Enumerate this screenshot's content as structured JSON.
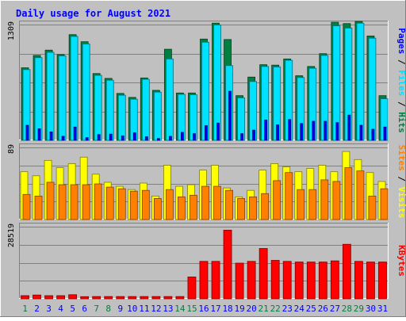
{
  "chart_data": {
    "type": "bar",
    "title": "Daily usage for August 2021",
    "categories": [
      "1",
      "2",
      "3",
      "4",
      "5",
      "6",
      "7",
      "8",
      "9",
      "10",
      "11",
      "12",
      "13",
      "14",
      "15",
      "16",
      "17",
      "18",
      "19",
      "20",
      "21",
      "22",
      "23",
      "24",
      "25",
      "26",
      "27",
      "28",
      "29",
      "30",
      "31"
    ],
    "weekend_days": [
      "1",
      "7",
      "8",
      "14",
      "15",
      "21",
      "22",
      "28",
      "29"
    ],
    "panels": [
      {
        "name": "hits-files-pages",
        "ymax_label": "1309",
        "ylim": [
          0,
          1309
        ],
        "right_labels": [
          "Pages",
          "Files",
          "Hits"
        ],
        "series": [
          {
            "name": "Hits",
            "color": "#008040",
            "values": [
              820,
              960,
              1020,
              970,
              1195,
              1115,
              755,
              700,
              530,
              485,
              705,
              565,
              1030,
              535,
              535,
              1145,
              1325,
              1140,
              505,
              715,
              855,
              850,
              920,
              730,
              835,
              980,
              1335,
              1320,
              1345,
              1180,
              505
            ]
          },
          {
            "name": "Files",
            "color": "#00e0ff",
            "values": [
              800,
              935,
              995,
              955,
              1175,
              1090,
              735,
              680,
              510,
              465,
              690,
              545,
              920,
              520,
              515,
              1110,
              1305,
              845,
              480,
              665,
              835,
              830,
              905,
              710,
              815,
              960,
              1295,
              1270,
              1325,
              1155,
              470
            ]
          },
          {
            "name": "Pages",
            "color": "#0000ff",
            "values": [
              170,
              130,
              95,
              45,
              150,
              30,
              65,
              70,
              50,
              85,
              40,
              20,
              45,
              90,
              75,
              165,
              195,
              555,
              75,
              115,
              230,
              175,
              235,
              190,
              215,
              215,
              200,
              285,
              170,
              125,
              150
            ]
          }
        ]
      },
      {
        "name": "visits-sites",
        "ymax_label": "89",
        "ylim": [
          0,
          89
        ],
        "right_labels": [
          "Sites",
          "Visits"
        ],
        "series": [
          {
            "name": "Visits",
            "color": "#ffff00",
            "values": [
              59,
              54,
              73,
              64,
              69,
              77,
              56,
              46,
              41,
              37,
              45,
              29,
              67,
              41,
              43,
              61,
              67,
              39,
              28,
              36,
              61,
              69,
              65,
              59,
              63,
              67,
              59,
              84,
              74,
              58,
              47
            ]
          },
          {
            "name": "Sites",
            "color": "#ff8000",
            "values": [
              31,
              29,
              46,
              43,
              43,
              43,
              44,
              40,
              38,
              35,
              36,
              26,
              37,
              28,
              30,
              41,
              41,
              36,
              26,
              28,
              32,
              48,
              58,
              37,
              37,
              49,
              47,
              64,
              60,
              29,
              38
            ]
          }
        ]
      },
      {
        "name": "kbytes",
        "ymax_label": "28519",
        "ylim": [
          0,
          28519
        ],
        "right_labels": [
          "KBytes"
        ],
        "series": [
          {
            "name": "KBytes",
            "color": "#ff0000",
            "values": [
              1250,
              1500,
              1250,
              1250,
              1620,
              850,
              900,
              900,
              900,
              900,
              900,
              900,
              900,
              900,
              8640,
              14800,
              14800,
              27150,
              14100,
              14800,
              19900,
              15200,
              14800,
              14550,
              14550,
              14550,
              15000,
              21560,
              14800,
              14550,
              14550
            ]
          }
        ]
      }
    ],
    "grid": true,
    "legend": "right-vertical"
  },
  "colors": {
    "background": "#c0c0c0",
    "plot_background": "#c0c0c0",
    "title": "#0000ff",
    "weekday_label": "#0000ff",
    "weekend_label": "#008040",
    "legend_separator": "#000000"
  }
}
